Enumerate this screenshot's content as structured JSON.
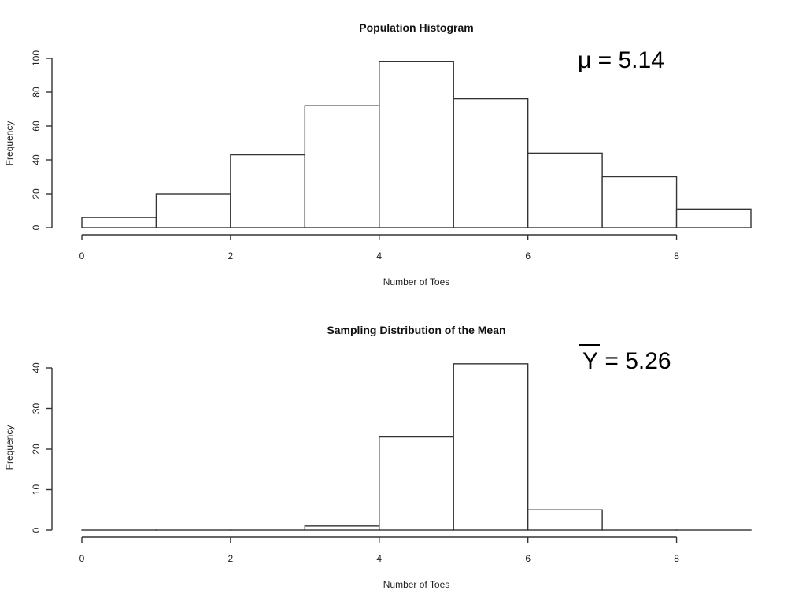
{
  "chart_data": [
    {
      "type": "bar",
      "title": "Population Histogram",
      "xlabel": "Number of Toes",
      "ylabel": "Frequency",
      "bin_edges": [
        0,
        1,
        2,
        3,
        4,
        5,
        6,
        7,
        8,
        9
      ],
      "values": [
        6,
        20,
        43,
        72,
        98,
        76,
        44,
        30,
        11
      ],
      "xticks": [
        "0",
        "2",
        "4",
        "6",
        "8"
      ],
      "yticks": [
        "0",
        "20",
        "40",
        "60",
        "80",
        "100"
      ],
      "xlim": [
        0,
        9
      ],
      "ylim": [
        0,
        100
      ],
      "grid": false,
      "annotation": {
        "symbol": "μ",
        "text": " = 5.14"
      }
    },
    {
      "type": "bar",
      "title": "Sampling Distribution of the Mean",
      "xlabel": "Number of Toes",
      "ylabel": "Frequency",
      "bin_edges": [
        0,
        1,
        2,
        3,
        4,
        5,
        6,
        7,
        8,
        9
      ],
      "values": [
        0,
        0,
        0,
        1,
        23,
        41,
        5,
        0,
        0
      ],
      "xticks": [
        "0",
        "2",
        "4",
        "6",
        "8"
      ],
      "yticks": [
        "0",
        "10",
        "20",
        "30",
        "40"
      ],
      "xlim": [
        0,
        9
      ],
      "ylim": [
        0,
        40
      ],
      "grid": false,
      "annotation": {
        "symbol": "Y",
        "text": " = 5.26"
      }
    }
  ]
}
